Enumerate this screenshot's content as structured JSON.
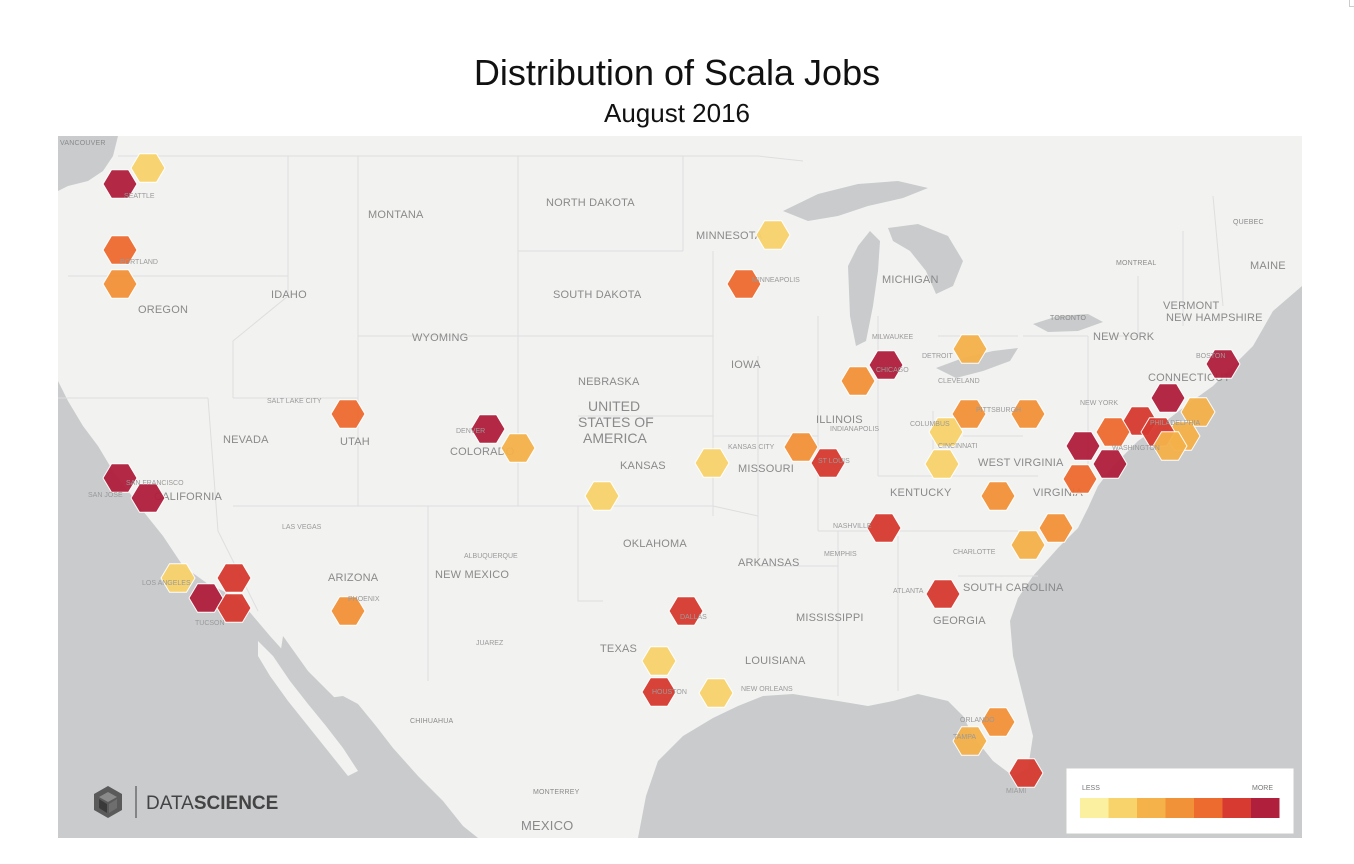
{
  "title": "Distribution of Scala Jobs",
  "subtitle": "August 2016",
  "brand": {
    "name_light": "DATA",
    "name_bold": "SCIENCE"
  },
  "legend": {
    "less_label": "LESS",
    "more_label": "MORE",
    "colors": [
      "#fbf0a0",
      "#f8d36b",
      "#f5b14a",
      "#f29238",
      "#ed6b2f",
      "#d73a30",
      "#b01f3c"
    ]
  },
  "regions": [
    {
      "id": "vancouver",
      "text": "VANCOUVER"
    },
    {
      "id": "montana",
      "text": "MONTANA"
    },
    {
      "id": "north-dakota",
      "text": "NORTH DAKOTA"
    },
    {
      "id": "minnesota",
      "text": "MINNESOTA"
    },
    {
      "id": "quebec",
      "text": "QUEBEC"
    },
    {
      "id": "montreal",
      "text": "MONTREAL"
    },
    {
      "id": "maine",
      "text": "MAINE"
    },
    {
      "id": "oregon",
      "text": "OREGON"
    },
    {
      "id": "idaho",
      "text": "IDAHO"
    },
    {
      "id": "south-dakota",
      "text": "SOUTH DAKOTA"
    },
    {
      "id": "michigan",
      "text": "MICHIGAN"
    },
    {
      "id": "vermont",
      "text": "VERMONT"
    },
    {
      "id": "new-hampshire",
      "text": "NEW HAMPSHIRE"
    },
    {
      "id": "toronto",
      "text": "TORONTO"
    },
    {
      "id": "wyoming",
      "text": "WYOMING"
    },
    {
      "id": "new-york",
      "text": "NEW YORK"
    },
    {
      "id": "iowa",
      "text": "IOWA"
    },
    {
      "id": "nebraska",
      "text": "NEBRASKA"
    },
    {
      "id": "connecticut",
      "text": "CONNECTICUT"
    },
    {
      "id": "usa",
      "text": "UNITED STATES OF AMERICA"
    },
    {
      "id": "nevada",
      "text": "NEVADA"
    },
    {
      "id": "utah",
      "text": "UTAH"
    },
    {
      "id": "colorado",
      "text": "COLORADO"
    },
    {
      "id": "illinois",
      "text": "ILLINOIS"
    },
    {
      "id": "kansas",
      "text": "KANSAS"
    },
    {
      "id": "missouri",
      "text": "MISSOURI"
    },
    {
      "id": "west-virginia",
      "text": "WEST VIRGINIA"
    },
    {
      "id": "california",
      "text": "CALIFORNIA"
    },
    {
      "id": "kentucky",
      "text": "KENTUCKY"
    },
    {
      "id": "virginia",
      "text": "VIRGINIA"
    },
    {
      "id": "oklahoma",
      "text": "OKLAHOMA"
    },
    {
      "id": "arkansas",
      "text": "ARKANSAS"
    },
    {
      "id": "arizona",
      "text": "ARIZONA"
    },
    {
      "id": "new-mexico",
      "text": "NEW MEXICO"
    },
    {
      "id": "south-carolina",
      "text": "SOUTH CAROLINA"
    },
    {
      "id": "mississippi",
      "text": "MISSISSIPPI"
    },
    {
      "id": "georgia",
      "text": "GEORGIA"
    },
    {
      "id": "texas",
      "text": "TEXAS"
    },
    {
      "id": "louisiana",
      "text": "LOUISIANA"
    },
    {
      "id": "chihuahua",
      "text": "CHIHUAHUA"
    },
    {
      "id": "monterrey",
      "text": "MONTERREY"
    },
    {
      "id": "mexico",
      "text": "MEXICO"
    }
  ],
  "cities": [
    {
      "id": "seattle",
      "text": "SEATTLE"
    },
    {
      "id": "portland",
      "text": "PORTLAND"
    },
    {
      "id": "minneapolis",
      "text": "MINNEAPOLIS"
    },
    {
      "id": "milwaukee",
      "text": "MILWAUKEE"
    },
    {
      "id": "detroit",
      "text": "DETROIT"
    },
    {
      "id": "chicago",
      "text": "CHICAGO"
    },
    {
      "id": "cleveland",
      "text": "CLEVELAND"
    },
    {
      "id": "boston",
      "text": "BOSTON"
    },
    {
      "id": "salt-lake-city",
      "text": "SALT LAKE CITY"
    },
    {
      "id": "pittsburgh",
      "text": "PITTSBURGH"
    },
    {
      "id": "new-york-city",
      "text": "NEW YORK"
    },
    {
      "id": "philadelphia",
      "text": "PHILADELPHIA"
    },
    {
      "id": "denver",
      "text": "DENVER"
    },
    {
      "id": "indianapolis",
      "text": "INDIANAPOLIS"
    },
    {
      "id": "columbus",
      "text": "COLUMBUS"
    },
    {
      "id": "cincinnati",
      "text": "CINCINNATI"
    },
    {
      "id": "washington",
      "text": "WASHINGTON"
    },
    {
      "id": "kansas-city",
      "text": "KANSAS CITY"
    },
    {
      "id": "st-louis",
      "text": "ST LOUIS"
    },
    {
      "id": "san-francisco",
      "text": "SAN FRANCISCO"
    },
    {
      "id": "san-jose",
      "text": "SAN JOSE"
    },
    {
      "id": "las-vegas",
      "text": "LAS VEGAS"
    },
    {
      "id": "nashville",
      "text": "NASHVILLE"
    },
    {
      "id": "memphis",
      "text": "MEMPHIS"
    },
    {
      "id": "charlotte",
      "text": "CHARLOTTE"
    },
    {
      "id": "albuquerque",
      "text": "ALBUQUERQUE"
    },
    {
      "id": "los-angeles",
      "text": "LOS ANGELES"
    },
    {
      "id": "atlanta",
      "text": "ATLANTA"
    },
    {
      "id": "phoenix",
      "text": "PHOENIX"
    },
    {
      "id": "tucson",
      "text": "TUCSON"
    },
    {
      "id": "dallas",
      "text": "DALLAS"
    },
    {
      "id": "juarez",
      "text": "JUAREZ"
    },
    {
      "id": "houston",
      "text": "HOUSTON"
    },
    {
      "id": "new-orleans",
      "text": "NEW ORLEANS"
    },
    {
      "id": "orlando",
      "text": "ORLANDO"
    },
    {
      "id": "tampa",
      "text": "TAMPA"
    },
    {
      "id": "miami",
      "text": "MIAMI"
    }
  ]
}
